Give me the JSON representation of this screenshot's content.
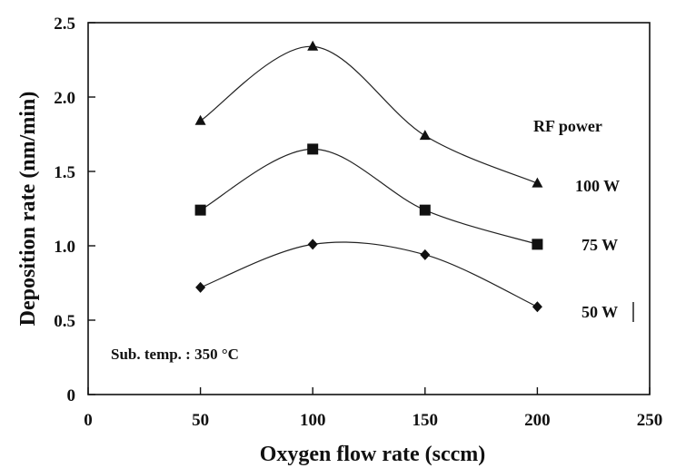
{
  "chart_data": {
    "type": "line",
    "xlabel": "Oxygen flow rate (sccm)",
    "ylabel": "Deposition rate (nm/min)",
    "xlim": [
      0,
      250
    ],
    "ylim": [
      0,
      2.5
    ],
    "xticks": [
      0,
      50,
      100,
      150,
      200,
      250
    ],
    "yticks": [
      "0",
      "0.5",
      "1.0",
      "1.5",
      "2.0",
      "2.5"
    ],
    "x": [
      50,
      100,
      150,
      200
    ],
    "grid": false,
    "legend_title": "RF power",
    "annotation": "Sub. temp. : 350 °C",
    "series": [
      {
        "name": "100 W",
        "marker": "triangle",
        "values": [
          1.84,
          2.34,
          1.74,
          1.42
        ]
      },
      {
        "name": "75 W",
        "marker": "square",
        "values": [
          1.24,
          1.65,
          1.24,
          1.01
        ]
      },
      {
        "name": "50 W",
        "marker": "diamond",
        "values": [
          0.72,
          1.01,
          0.94,
          0.59
        ]
      }
    ]
  }
}
